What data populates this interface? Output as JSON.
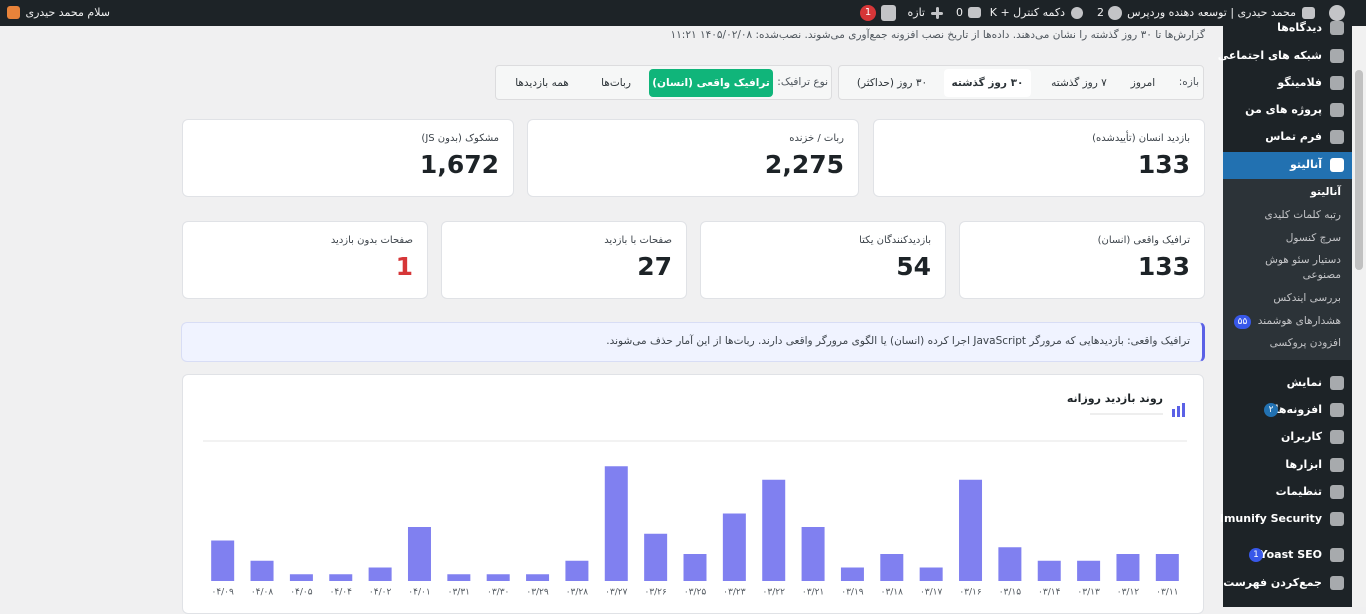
{
  "admin_bar": {
    "site_name": "محمد حیدری | توسعه دهنده وردپرس",
    "updates": "2",
    "shortcut": "دکمه کنترل + K",
    "comments": "0",
    "new": "تازه",
    "seo_badge": "1",
    "greeting": "سلام محمد حیدری"
  },
  "sidebar": {
    "menu": [
      {
        "label": "دیدگاه‌ها"
      },
      {
        "label": "شبکه های اجتماعی"
      },
      {
        "label": "فلامینگو"
      },
      {
        "label": "پروژه های من"
      },
      {
        "label": "فرم تماس"
      },
      {
        "label": "آنالیتو"
      },
      {
        "label": "نمایش"
      },
      {
        "label": "افزونه‌ها",
        "badge": "۲"
      },
      {
        "label": "کاربران"
      },
      {
        "label": "ابزارها"
      },
      {
        "label": "تنظیمات"
      },
      {
        "label": "Imunify Security"
      },
      {
        "label": "Yoast SEO",
        "badge": "1"
      },
      {
        "label": "جمع‌کردن فهرست"
      }
    ],
    "submenu": [
      {
        "label": "آنالیتو"
      },
      {
        "label": "رتبه کلمات کلیدی"
      },
      {
        "label": "سرچ کنسول"
      },
      {
        "label": "دستیار سئو هوش مصنوعی"
      },
      {
        "label": "بررسی ایندکس"
      },
      {
        "label": "هشدارهای هوشمند",
        "badge": "۵۵"
      },
      {
        "label": "افزودن پروکسی"
      }
    ]
  },
  "notice": "گزارش‌ها تا ۳۰ روز گذشته را نشان می‌دهند. داده‌ها از تاریخ نصب افزونه جمع‌آوری می‌شوند. نصب‌شده: ۱۴۰۵/۰۲/۰۸ ۱۱:۲۱",
  "filters": {
    "range_label": "بازه:",
    "ranges": [
      "امروز",
      "۷ روز گذشته",
      "۳۰ روز گذشته",
      "۳۰ روز (حداکثر)"
    ],
    "traffic_label": "نوع ترافیک:",
    "traffic": [
      "ترافیک واقعی (انسان)",
      "ربات‌ها",
      "همه بازدیدها"
    ]
  },
  "stats": [
    {
      "label": "بازدید انسان (تأییدشده)",
      "value": "133"
    },
    {
      "label": "ربات / خزنده",
      "value": "2,275"
    },
    {
      "label": "مشکوک (بدون JS)",
      "value": "1,672"
    },
    {
      "label": "ترافیک واقعی (انسان)",
      "value": "133"
    },
    {
      "label": "بازدیدکنندگان یکتا",
      "value": "54"
    },
    {
      "label": "صفحات با بازدید",
      "value": "27"
    },
    {
      "label": "صفحات بدون بازدید",
      "value": "1"
    }
  ],
  "info": "ترافیک واقعی: بازدیدهایی که مرورگر JavaScript اجرا کرده (انسان) یا الگوی مرورگر واقعی دارند. ربات‌ها از این آمار حذف می‌شوند.",
  "chart_data": {
    "type": "bar",
    "title": "روند بازدید روزانه",
    "categories": [
      "۰۳/۱۱",
      "۰۳/۱۲",
      "۰۳/۱۳",
      "۰۳/۱۴",
      "۰۳/۱۵",
      "۰۳/۱۶",
      "۰۳/۱۷",
      "۰۳/۱۸",
      "۰۳/۱۹",
      "۰۳/۲۱",
      "۰۳/۲۲",
      "۰۳/۲۳",
      "۰۳/۲۵",
      "۰۳/۲۶",
      "۰۳/۲۷",
      "۰۳/۲۸",
      "۰۳/۲۹",
      "۰۳/۳۰",
      "۰۳/۳۱",
      "۰۴/۰۱",
      "۰۴/۰۲",
      "۰۴/۰۴",
      "۰۴/۰۵",
      "۰۴/۰۸",
      "۰۴/۰۹"
    ],
    "values": [
      4,
      4,
      3,
      3,
      5,
      15,
      2,
      4,
      2,
      8,
      15,
      10,
      4,
      7,
      17,
      3,
      1,
      1,
      1,
      8,
      2,
      1,
      1,
      3,
      6
    ],
    "color": "#8080f0",
    "ylim": [
      0,
      20
    ]
  }
}
